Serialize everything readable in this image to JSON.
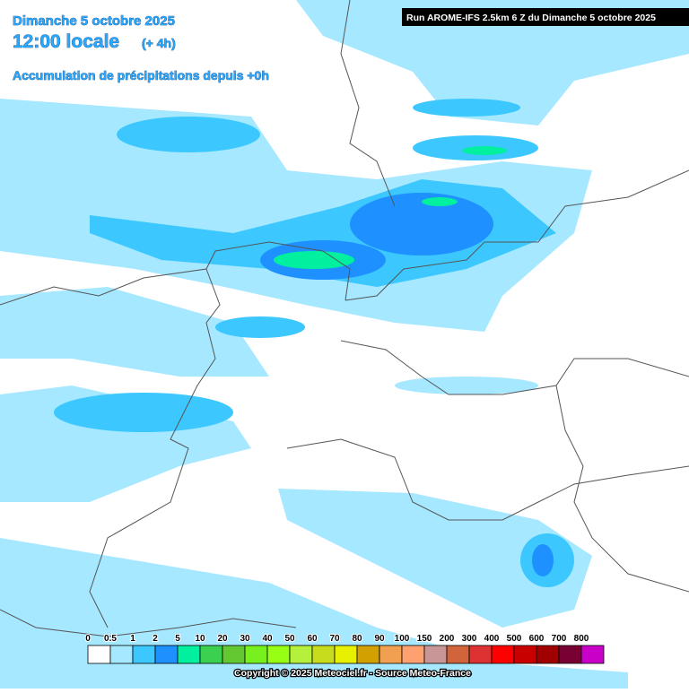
{
  "header": {
    "date": "Dimanche 5 octobre 2025",
    "time": "12:00 locale",
    "lead": "(+ 4h)",
    "subtitle": "Accumulation de précipitations depuis +0h",
    "run_info": "Run AROME-IFS 2.5km 6 Z du Dimanche 5 octobre 2025"
  },
  "legend": {
    "items": [
      {
        "label": "0",
        "color": "#ffffff"
      },
      {
        "label": "0.5",
        "color": "#a5e8ff"
      },
      {
        "label": "1",
        "color": "#3cc8ff"
      },
      {
        "label": "2",
        "color": "#1e90ff"
      },
      {
        "label": "5",
        "color": "#00f0a0"
      },
      {
        "label": "10",
        "color": "#3cd050"
      },
      {
        "label": "20",
        "color": "#64c832"
      },
      {
        "label": "30",
        "color": "#78f01e"
      },
      {
        "label": "40",
        "color": "#96ff14"
      },
      {
        "label": "50",
        "color": "#b4f03c"
      },
      {
        "label": "60",
        "color": "#c8dc1e"
      },
      {
        "label": "70",
        "color": "#e6f000"
      },
      {
        "label": "80",
        "color": "#d2a000"
      },
      {
        "label": "90",
        "color": "#f0a050"
      },
      {
        "label": "100",
        "color": "#ffa070"
      },
      {
        "label": "150",
        "color": "#c89696"
      },
      {
        "label": "200",
        "color": "#d2643c"
      },
      {
        "label": "300",
        "color": "#dc3232"
      },
      {
        "label": "400",
        "color": "#ff0000"
      },
      {
        "label": "500",
        "color": "#c80000"
      },
      {
        "label": "600",
        "color": "#a00000"
      },
      {
        "label": "700",
        "color": "#780032"
      },
      {
        "label": "800",
        "color": "#c800c8"
      }
    ]
  },
  "footer": {
    "copyright": "Copyright © 2025 Meteociel.fr - Source Meteo-France"
  }
}
